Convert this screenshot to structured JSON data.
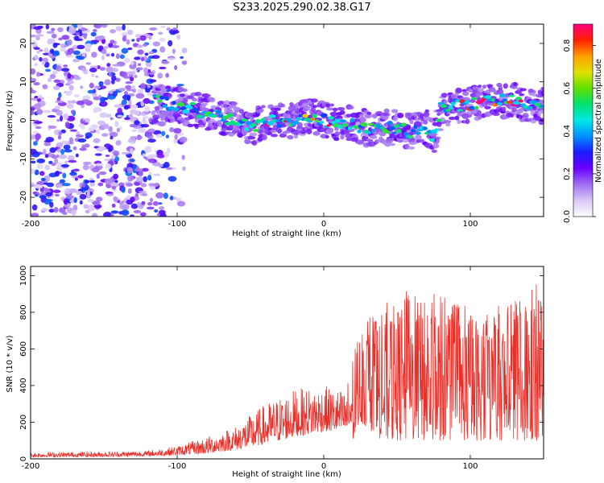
{
  "title": "S233.2025.290.02.38.G17",
  "chart_data": [
    {
      "type": "heatmap",
      "xlabel": "Height of straight line (km)",
      "ylabel": "Frequency (Hz)",
      "xlim": [
        -200,
        150
      ],
      "ylim": [
        -25,
        25
      ],
      "xticks": [
        -200,
        -100,
        0,
        100
      ],
      "yticks": [
        -20,
        -10,
        0,
        10,
        20
      ],
      "colorbar": {
        "label": "Normalized spectral amplitude",
        "range": [
          0,
          0.9
        ],
        "ticks": [
          0.0,
          0.2,
          0.4,
          0.6,
          0.8
        ],
        "colormap": [
          "#ffffff",
          "#d8c8f8",
          "#a070f0",
          "#6a00ff",
          "#1a1aff",
          "#0090ff",
          "#00e8e8",
          "#00e070",
          "#60e000",
          "#e0e000",
          "#ffa000",
          "#ff2000",
          "#ff0080"
        ]
      },
      "ridge": {
        "x": [
          -115,
          -100,
          -90,
          -80,
          -70,
          -60,
          -50,
          -40,
          -30,
          -20,
          -10,
          0,
          10,
          20,
          30,
          40,
          50,
          60,
          70,
          75,
          80,
          90,
          100,
          110,
          120,
          130,
          140,
          150
        ],
        "freq": [
          5,
          4,
          3,
          2,
          1,
          0,
          -2,
          0,
          0,
          0,
          1,
          0,
          -1,
          -1,
          -2,
          -2,
          -2,
          -3,
          -2,
          -5,
          3,
          4,
          4,
          5,
          5,
          5,
          4,
          4
        ]
      },
      "noise_region_x": [
        -200,
        -110
      ]
    },
    {
      "type": "line",
      "xlabel": "Height of straight line (km)",
      "ylabel": "SNR (10 * v/v)",
      "xlim": [
        -200,
        150
      ],
      "ylim": [
        0,
        1050
      ],
      "xticks": [
        -200,
        -100,
        0,
        100
      ],
      "yticks": [
        0,
        200,
        400,
        600,
        800,
        1000
      ],
      "line_color": "#e8302a",
      "envelope": {
        "x": [
          -200,
          -150,
          -120,
          -100,
          -80,
          -60,
          -40,
          -20,
          0,
          15,
          20,
          25,
          40,
          60,
          80,
          100,
          120,
          140,
          150
        ],
        "low": [
          10,
          12,
          15,
          20,
          30,
          50,
          80,
          120,
          150,
          150,
          100,
          200,
          100,
          100,
          100,
          100,
          100,
          100,
          100
        ],
        "high": [
          35,
          40,
          45,
          70,
          120,
          180,
          300,
          380,
          400,
          370,
          600,
          700,
          800,
          900,
          850,
          800,
          800,
          900,
          1000
        ]
      }
    }
  ]
}
